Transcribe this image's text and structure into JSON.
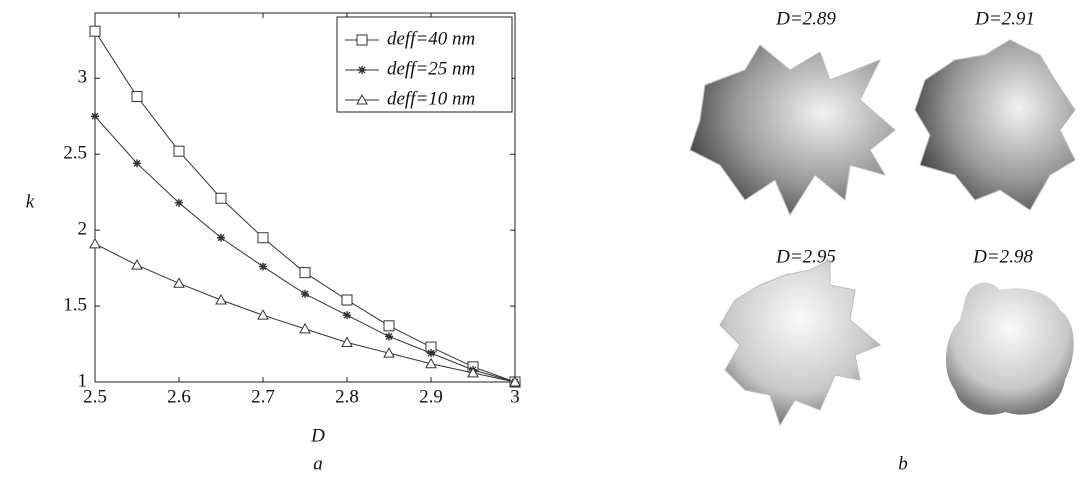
{
  "chart_data": {
    "type": "line",
    "x_label": "D",
    "y_label": "k",
    "x": [
      2.5,
      2.55,
      2.6,
      2.65,
      2.7,
      2.75,
      2.8,
      2.85,
      2.9,
      2.95,
      3
    ],
    "series": [
      {
        "name": "deff=40 nm",
        "color": "#333333",
        "marker": "square",
        "values": [
          3.31,
          2.88,
          2.52,
          2.21,
          1.95,
          1.72,
          1.54,
          1.37,
          1.23,
          1.1,
          1.0
        ]
      },
      {
        "name": "deff=25 nm",
        "color": "#333333",
        "marker": "asterisk",
        "values": [
          2.75,
          2.44,
          2.18,
          1.95,
          1.76,
          1.58,
          1.44,
          1.3,
          1.19,
          1.08,
          1.0
        ]
      },
      {
        "name": "deff=10 nm",
        "color": "#333333",
        "marker": "triangle",
        "values": [
          1.91,
          1.77,
          1.65,
          1.54,
          1.44,
          1.35,
          1.26,
          1.19,
          1.12,
          1.06,
          1.0
        ]
      }
    ],
    "xlim": [
      2.5,
      3
    ],
    "xticks": [
      2.5,
      2.6,
      2.7,
      2.8,
      2.9,
      3
    ],
    "ylim": [
      1,
      3.43
    ],
    "yticks": [
      1,
      1.5,
      2,
      2.5,
      3
    ],
    "legend": "upper right",
    "caption": "a"
  },
  "figure": {
    "caption": "b",
    "panels": [
      {
        "label": "D=2.89"
      },
      {
        "label": "D=2.91"
      },
      {
        "label": "D=2.95"
      },
      {
        "label": "D=2.98"
      }
    ]
  }
}
